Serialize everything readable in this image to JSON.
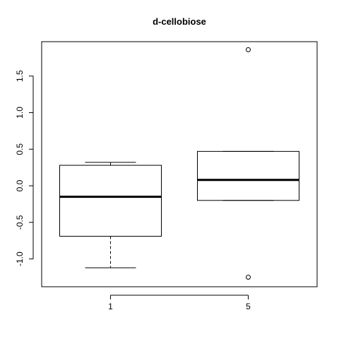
{
  "chart_data": {
    "type": "boxplot",
    "title": "d-cellobiose",
    "xlabel": "",
    "ylabel": "",
    "categories": [
      "1",
      "5"
    ],
    "ylim": [
      -1.38,
      1.97
    ],
    "yticks": [
      -1.0,
      -0.5,
      0.0,
      0.5,
      1.0,
      1.5
    ],
    "ytick_labels": [
      "-1.0",
      "-0.5",
      "0.0",
      "0.5",
      "1.0",
      "1.5"
    ],
    "boxes": [
      {
        "category": "1",
        "whisker_low": -1.12,
        "q1": -0.69,
        "median": -0.15,
        "q3": 0.28,
        "whisker_high": 0.32,
        "outliers": []
      },
      {
        "category": "5",
        "whisker_low": -0.2,
        "q1": -0.2,
        "median": 0.08,
        "q3": 0.47,
        "whisker_high": 0.47,
        "outliers": [
          1.86,
          -1.25
        ]
      }
    ],
    "grid": false,
    "legend": "none"
  }
}
